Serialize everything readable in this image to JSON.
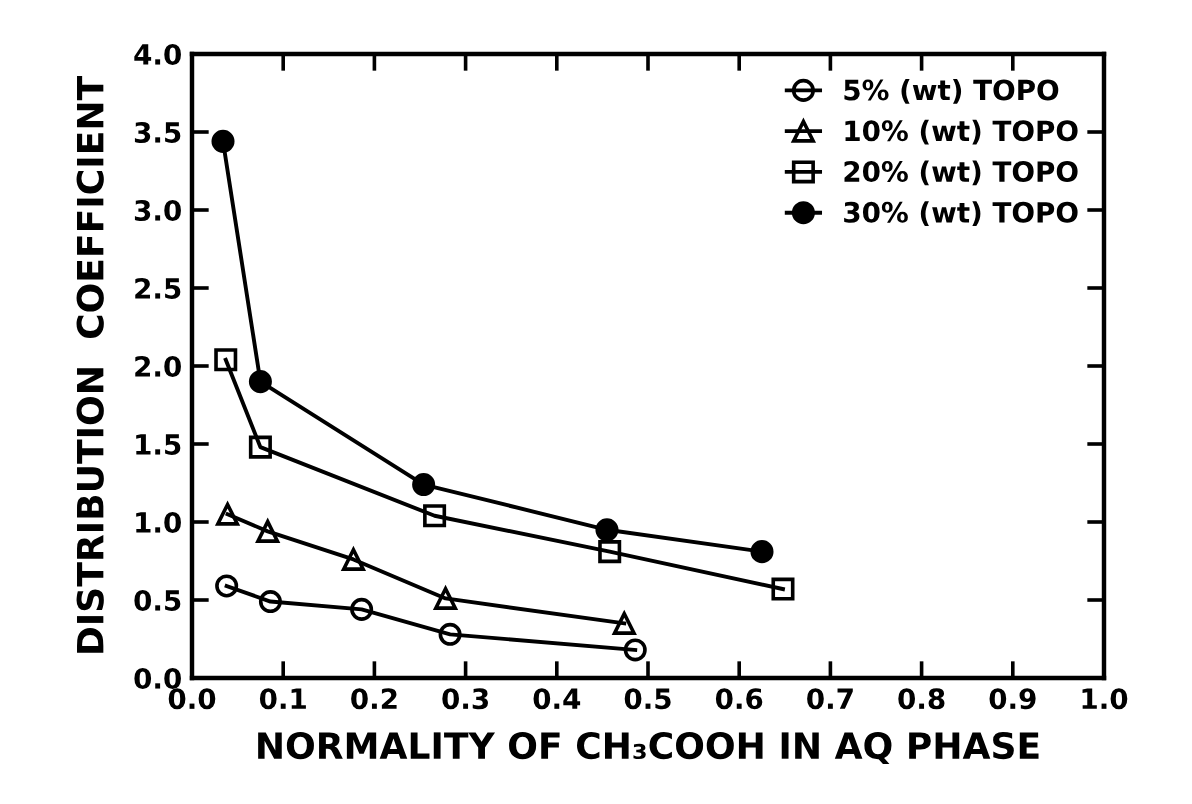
{
  "chart_data": {
    "type": "line",
    "xlabel": "NORMALITY OF CH₃COOH IN AQ PHASE",
    "ylabel": "DISTRIBUTION  COEFFICIENT",
    "xlim": [
      0.0,
      1.0
    ],
    "xticks": [
      {
        "value": 0.0,
        "label": "0.0"
      },
      0.1,
      0.2,
      0.3,
      0.4,
      0.5,
      0.6,
      0.7,
      0.8,
      0.9,
      {
        "value": 1.0,
        "label": "1.0"
      }
    ],
    "ylim": [
      0.0,
      4.0
    ],
    "yticks": [
      {
        "value": 0.0,
        "label": "0.0"
      },
      0.5,
      {
        "value": 1.0,
        "label": "1.0"
      },
      1.5,
      {
        "value": 2.0,
        "label": "2.0"
      },
      2.5,
      {
        "value": 3.0,
        "label": "3.0"
      },
      3.5,
      {
        "value": 4.0,
        "label": "4.0"
      }
    ],
    "grid": false,
    "legend": "top right",
    "line_style": "solid",
    "series": [
      {
        "name": "5% (wt) TOPO",
        "color": "#000000",
        "marker": "circle",
        "x": [
          0.038,
          0.086,
          0.186,
          0.283,
          0.486
        ],
        "values": [
          0.59,
          0.49,
          0.44,
          0.28,
          0.18
        ]
      },
      {
        "name": "10% (wt) TOPO",
        "color": "#000000",
        "marker": "triangle",
        "x": [
          0.039,
          0.083,
          0.177,
          0.278,
          0.474
        ],
        "values": [
          1.05,
          0.94,
          0.76,
          0.51,
          0.35
        ]
      },
      {
        "name": "20% (wt) TOPO",
        "color": "#000000",
        "marker": "square",
        "x": [
          0.037,
          0.075,
          0.266,
          0.458,
          0.648
        ],
        "values": [
          2.04,
          1.48,
          1.04,
          0.81,
          0.57
        ]
      },
      {
        "name": "30% (wt) TOPO",
        "color": "#000000",
        "marker": "circle",
        "x": [
          0.034,
          0.075,
          0.254,
          0.455,
          0.625
        ],
        "values": [
          3.44,
          1.9,
          1.24,
          0.95,
          0.81
        ]
      }
    ]
  }
}
